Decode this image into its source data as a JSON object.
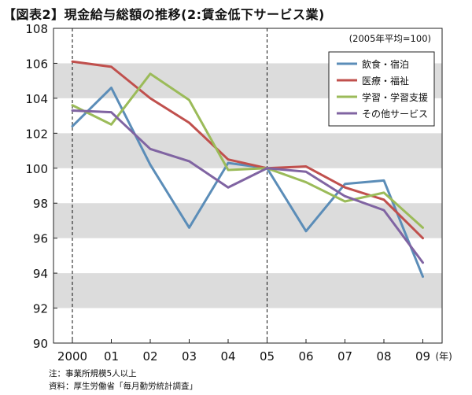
{
  "title": "【図表2】現金給与総額の推移(2:賃金低下サービス業)",
  "base_note": "(2005年平均=100)",
  "notes": [
    "注：事業所規模5人以上",
    "資料：厚生労働省「毎月勤労統計調査」"
  ],
  "chart_data": {
    "type": "line",
    "title": "【図表2】現金給与総額の推移(2:賃金低下サービス業)",
    "xlabel": "",
    "ylabel": "",
    "x_tick_labels": [
      "2000",
      "01",
      "02",
      "03",
      "04",
      "05",
      "06",
      "07",
      "08",
      "09"
    ],
    "x_unit": "(年)",
    "ylim": [
      90,
      108
    ],
    "y_ticks": [
      90,
      92,
      94,
      96,
      98,
      100,
      102,
      104,
      106,
      108
    ],
    "grid": "alternating gray bands",
    "reference_lines": [
      "2000",
      "05"
    ],
    "legend_position": "top-right",
    "series": [
      {
        "name": "飲食・宿泊",
        "color": "#5b8db8",
        "values": [
          102.4,
          104.6,
          100.2,
          96.6,
          100.3,
          100.0,
          96.4,
          99.1,
          99.3,
          93.8
        ]
      },
      {
        "name": "医療・福祉",
        "color": "#c0504d",
        "values": [
          106.1,
          105.8,
          104.0,
          102.6,
          100.5,
          100.0,
          100.1,
          98.9,
          98.2,
          96.0
        ]
      },
      {
        "name": "学習・学習支援",
        "color": "#9bbb59",
        "values": [
          103.6,
          102.5,
          105.4,
          103.9,
          99.9,
          100.0,
          99.2,
          98.1,
          98.6,
          96.6
        ]
      },
      {
        "name": "その他サービス",
        "color": "#8064a2",
        "values": [
          103.3,
          103.2,
          101.1,
          100.4,
          98.9,
          100.0,
          99.8,
          98.4,
          97.6,
          94.6
        ]
      }
    ]
  }
}
